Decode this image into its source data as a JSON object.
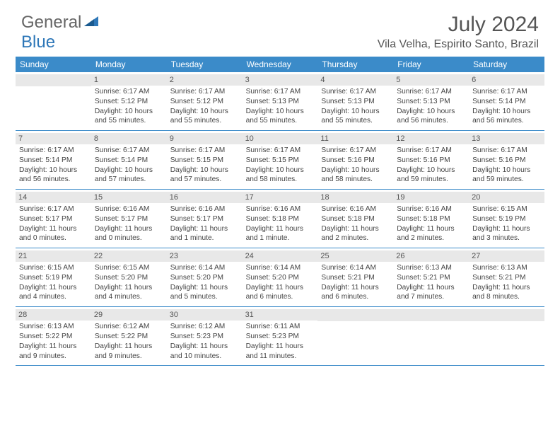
{
  "brand": {
    "text1": "General",
    "text2": "Blue"
  },
  "title": "July 2024",
  "location": "Vila Velha, Espirito Santo, Brazil",
  "colors": {
    "header_bg": "#3b8bc9",
    "header_text": "#ffffff",
    "daynum_bg": "#e8e8e8",
    "border": "#3b8bc9",
    "text": "#444444",
    "title_text": "#555555",
    "logo_gray": "#666666",
    "logo_blue": "#2e77b8"
  },
  "day_names": [
    "Sunday",
    "Monday",
    "Tuesday",
    "Wednesday",
    "Thursday",
    "Friday",
    "Saturday"
  ],
  "weeks": [
    [
      null,
      {
        "n": "1",
        "sr": "6:17 AM",
        "ss": "5:12 PM",
        "dl": "10 hours and 55 minutes."
      },
      {
        "n": "2",
        "sr": "6:17 AM",
        "ss": "5:12 PM",
        "dl": "10 hours and 55 minutes."
      },
      {
        "n": "3",
        "sr": "6:17 AM",
        "ss": "5:13 PM",
        "dl": "10 hours and 55 minutes."
      },
      {
        "n": "4",
        "sr": "6:17 AM",
        "ss": "5:13 PM",
        "dl": "10 hours and 55 minutes."
      },
      {
        "n": "5",
        "sr": "6:17 AM",
        "ss": "5:13 PM",
        "dl": "10 hours and 56 minutes."
      },
      {
        "n": "6",
        "sr": "6:17 AM",
        "ss": "5:14 PM",
        "dl": "10 hours and 56 minutes."
      }
    ],
    [
      {
        "n": "7",
        "sr": "6:17 AM",
        "ss": "5:14 PM",
        "dl": "10 hours and 56 minutes."
      },
      {
        "n": "8",
        "sr": "6:17 AM",
        "ss": "5:14 PM",
        "dl": "10 hours and 57 minutes."
      },
      {
        "n": "9",
        "sr": "6:17 AM",
        "ss": "5:15 PM",
        "dl": "10 hours and 57 minutes."
      },
      {
        "n": "10",
        "sr": "6:17 AM",
        "ss": "5:15 PM",
        "dl": "10 hours and 58 minutes."
      },
      {
        "n": "11",
        "sr": "6:17 AM",
        "ss": "5:16 PM",
        "dl": "10 hours and 58 minutes."
      },
      {
        "n": "12",
        "sr": "6:17 AM",
        "ss": "5:16 PM",
        "dl": "10 hours and 59 minutes."
      },
      {
        "n": "13",
        "sr": "6:17 AM",
        "ss": "5:16 PM",
        "dl": "10 hours and 59 minutes."
      }
    ],
    [
      {
        "n": "14",
        "sr": "6:17 AM",
        "ss": "5:17 PM",
        "dl": "11 hours and 0 minutes."
      },
      {
        "n": "15",
        "sr": "6:16 AM",
        "ss": "5:17 PM",
        "dl": "11 hours and 0 minutes."
      },
      {
        "n": "16",
        "sr": "6:16 AM",
        "ss": "5:17 PM",
        "dl": "11 hours and 1 minute."
      },
      {
        "n": "17",
        "sr": "6:16 AM",
        "ss": "5:18 PM",
        "dl": "11 hours and 1 minute."
      },
      {
        "n": "18",
        "sr": "6:16 AM",
        "ss": "5:18 PM",
        "dl": "11 hours and 2 minutes."
      },
      {
        "n": "19",
        "sr": "6:16 AM",
        "ss": "5:18 PM",
        "dl": "11 hours and 2 minutes."
      },
      {
        "n": "20",
        "sr": "6:15 AM",
        "ss": "5:19 PM",
        "dl": "11 hours and 3 minutes."
      }
    ],
    [
      {
        "n": "21",
        "sr": "6:15 AM",
        "ss": "5:19 PM",
        "dl": "11 hours and 4 minutes."
      },
      {
        "n": "22",
        "sr": "6:15 AM",
        "ss": "5:20 PM",
        "dl": "11 hours and 4 minutes."
      },
      {
        "n": "23",
        "sr": "6:14 AM",
        "ss": "5:20 PM",
        "dl": "11 hours and 5 minutes."
      },
      {
        "n": "24",
        "sr": "6:14 AM",
        "ss": "5:20 PM",
        "dl": "11 hours and 6 minutes."
      },
      {
        "n": "25",
        "sr": "6:14 AM",
        "ss": "5:21 PM",
        "dl": "11 hours and 6 minutes."
      },
      {
        "n": "26",
        "sr": "6:13 AM",
        "ss": "5:21 PM",
        "dl": "11 hours and 7 minutes."
      },
      {
        "n": "27",
        "sr": "6:13 AM",
        "ss": "5:21 PM",
        "dl": "11 hours and 8 minutes."
      }
    ],
    [
      {
        "n": "28",
        "sr": "6:13 AM",
        "ss": "5:22 PM",
        "dl": "11 hours and 9 minutes."
      },
      {
        "n": "29",
        "sr": "6:12 AM",
        "ss": "5:22 PM",
        "dl": "11 hours and 9 minutes."
      },
      {
        "n": "30",
        "sr": "6:12 AM",
        "ss": "5:23 PM",
        "dl": "11 hours and 10 minutes."
      },
      {
        "n": "31",
        "sr": "6:11 AM",
        "ss": "5:23 PM",
        "dl": "11 hours and 11 minutes."
      },
      null,
      null,
      null
    ]
  ],
  "labels": {
    "sunrise": "Sunrise: ",
    "sunset": "Sunset: ",
    "daylight": "Daylight: "
  }
}
